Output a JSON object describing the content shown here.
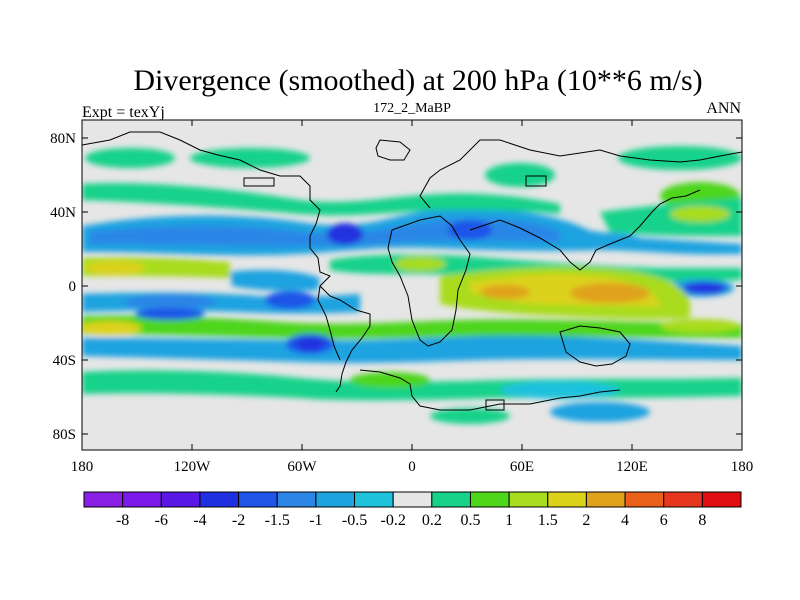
{
  "title": "Divergence (smoothed) at 200 hPa (10**6 m/s)",
  "left_label": "Expt = texYj",
  "center_label": "172_2_MaBP",
  "right_label": "ANN",
  "lat_ticks": [
    "80N",
    "40N",
    "0",
    "40S",
    "80S"
  ],
  "lon_ticks": [
    "180",
    "120W",
    "60W",
    "0",
    "60E",
    "120E",
    "180"
  ],
  "colorbar": {
    "colors": [
      "#8A1FE6",
      "#7A1BEA",
      "#5A18E6",
      "#2030E0",
      "#1F55E8",
      "#2B86E6",
      "#1EA3E0",
      "#1EC2DC",
      "#E6E6E6",
      "#18D28A",
      "#4ED61A",
      "#A8DC1E",
      "#DCD21A",
      "#E0A21A",
      "#E8601A",
      "#E6361E",
      "#E00E10"
    ],
    "labels": [
      "-8",
      "-6",
      "-4",
      "-2",
      "-1.5",
      "-1",
      "-0.5",
      "-0.2",
      "0.2",
      "0.5",
      "1",
      "1.5",
      "2",
      "4",
      "6",
      "8"
    ]
  },
  "map_background": "#E6E6E6"
}
